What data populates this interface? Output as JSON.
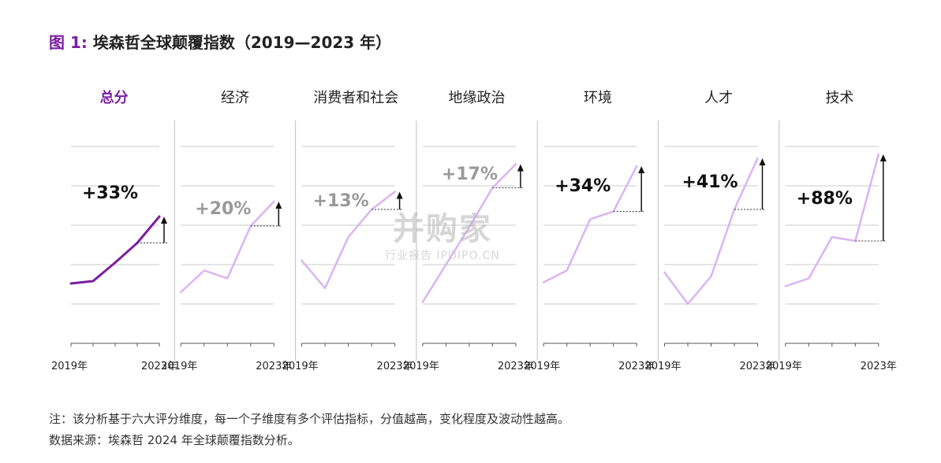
{
  "figure": {
    "label": "图 1:",
    "title": "埃森哲全球颠覆指数（2019—2023 年）"
  },
  "colors": {
    "primary": "#7a1fa2",
    "secondary": "#dcb3f2",
    "grid": "#c8c8c8",
    "divider": "#c0c0c0",
    "highlight_label": "#7a1fa2",
    "muted_label": "#999999",
    "dark_label": "#111111"
  },
  "chart_data": [
    {
      "type": "line",
      "title": "总分",
      "x": [
        "2019年",
        "2020年",
        "2021年",
        "2022年",
        "2023年"
      ],
      "y": [
        1.52,
        1.58,
        2.05,
        2.55,
        3.22
      ],
      "change_label": "+33%",
      "series": [
        {
          "name": "",
          "values": [
            1.52,
            1.58,
            2.05,
            2.55,
            3.22
          ]
        }
      ],
      "x_tick_labels": [
        "2019年",
        "2023年"
      ],
      "ylim": [
        0,
        5
      ],
      "grid": true
    },
    {
      "type": "line",
      "title": "经济",
      "x": [
        "2019年",
        "2020年",
        "2021年",
        "2022年",
        "2023年"
      ],
      "y": [
        1.3,
        1.85,
        1.65,
        2.98,
        3.6
      ],
      "change_label": "+20%",
      "series": [
        {
          "name": "",
          "values": [
            1.3,
            1.85,
            1.65,
            2.98,
            3.6
          ]
        }
      ],
      "x_tick_labels": [
        "2019年",
        "2023年"
      ],
      "ylim": [
        0,
        5
      ],
      "grid": true
    },
    {
      "type": "line",
      "title": "消费者和社会",
      "x": [
        "2019年",
        "2020年",
        "2021年",
        "2022年",
        "2023年"
      ],
      "y": [
        2.1,
        1.4,
        2.7,
        3.4,
        3.85
      ],
      "change_label": "+13%",
      "series": [
        {
          "name": "",
          "values": [
            2.1,
            1.4,
            2.7,
            3.4,
            3.85
          ]
        }
      ],
      "x_tick_labels": [
        "2019年",
        "2023年"
      ],
      "ylim": [
        0,
        5
      ],
      "grid": true
    },
    {
      "type": "line",
      "title": "地缘政治",
      "x": [
        "2019年",
        "2020年",
        "2021年",
        "2022年",
        "2023年"
      ],
      "y": [
        1.05,
        2.0,
        2.95,
        3.95,
        4.55
      ],
      "change_label": "+17%",
      "series": [
        {
          "name": "",
          "values": [
            1.05,
            2.0,
            2.95,
            3.95,
            4.55
          ]
        }
      ],
      "x_tick_labels": [
        "2019年",
        "2023年"
      ],
      "ylim": [
        0,
        5
      ],
      "grid": true
    },
    {
      "type": "line",
      "title": "环境",
      "x": [
        "2019年",
        "2020年",
        "2021年",
        "2022年",
        "2023年"
      ],
      "y": [
        1.55,
        1.85,
        3.15,
        3.35,
        4.5
      ],
      "change_label": "+34%",
      "series": [
        {
          "name": "",
          "values": [
            1.55,
            1.85,
            3.15,
            3.35,
            4.5
          ]
        }
      ],
      "x_tick_labels": [
        "2019年",
        "2023年"
      ],
      "ylim": [
        0,
        5
      ],
      "grid": true
    },
    {
      "type": "line",
      "title": "人才",
      "x": [
        "2019年",
        "2020年",
        "2021年",
        "2022年",
        "2023年"
      ],
      "y": [
        1.8,
        1.0,
        1.7,
        3.4,
        4.7
      ],
      "change_label": "+41%",
      "series": [
        {
          "name": "",
          "values": [
            1.8,
            1.0,
            1.7,
            3.4,
            4.7
          ]
        }
      ],
      "x_tick_labels": [
        "2019年",
        "2023年"
      ],
      "ylim": [
        0,
        5
      ],
      "grid": true
    },
    {
      "type": "line",
      "title": "技术",
      "x": [
        "2019年",
        "2020年",
        "2021年",
        "2022年",
        "2023年"
      ],
      "y": [
        1.45,
        1.65,
        2.7,
        2.6,
        4.8
      ],
      "change_label": "+88%",
      "series": [
        {
          "name": "",
          "values": [
            1.45,
            1.65,
            2.7,
            2.6,
            4.8
          ]
        }
      ],
      "x_tick_labels": [
        "2019年",
        "2023年"
      ],
      "ylim": [
        0,
        5
      ],
      "grid": true
    }
  ],
  "notes": {
    "note": "注：该分析基于六大评分维度，每一个子维度有多个评估指标，分值越高，变化程度及波动性越高。",
    "source": "数据来源：埃森哲 2024 年全球颠覆指数分析。"
  },
  "watermark": {
    "main": "并购家",
    "sub": "行业报告 IPOIPO.CN"
  }
}
